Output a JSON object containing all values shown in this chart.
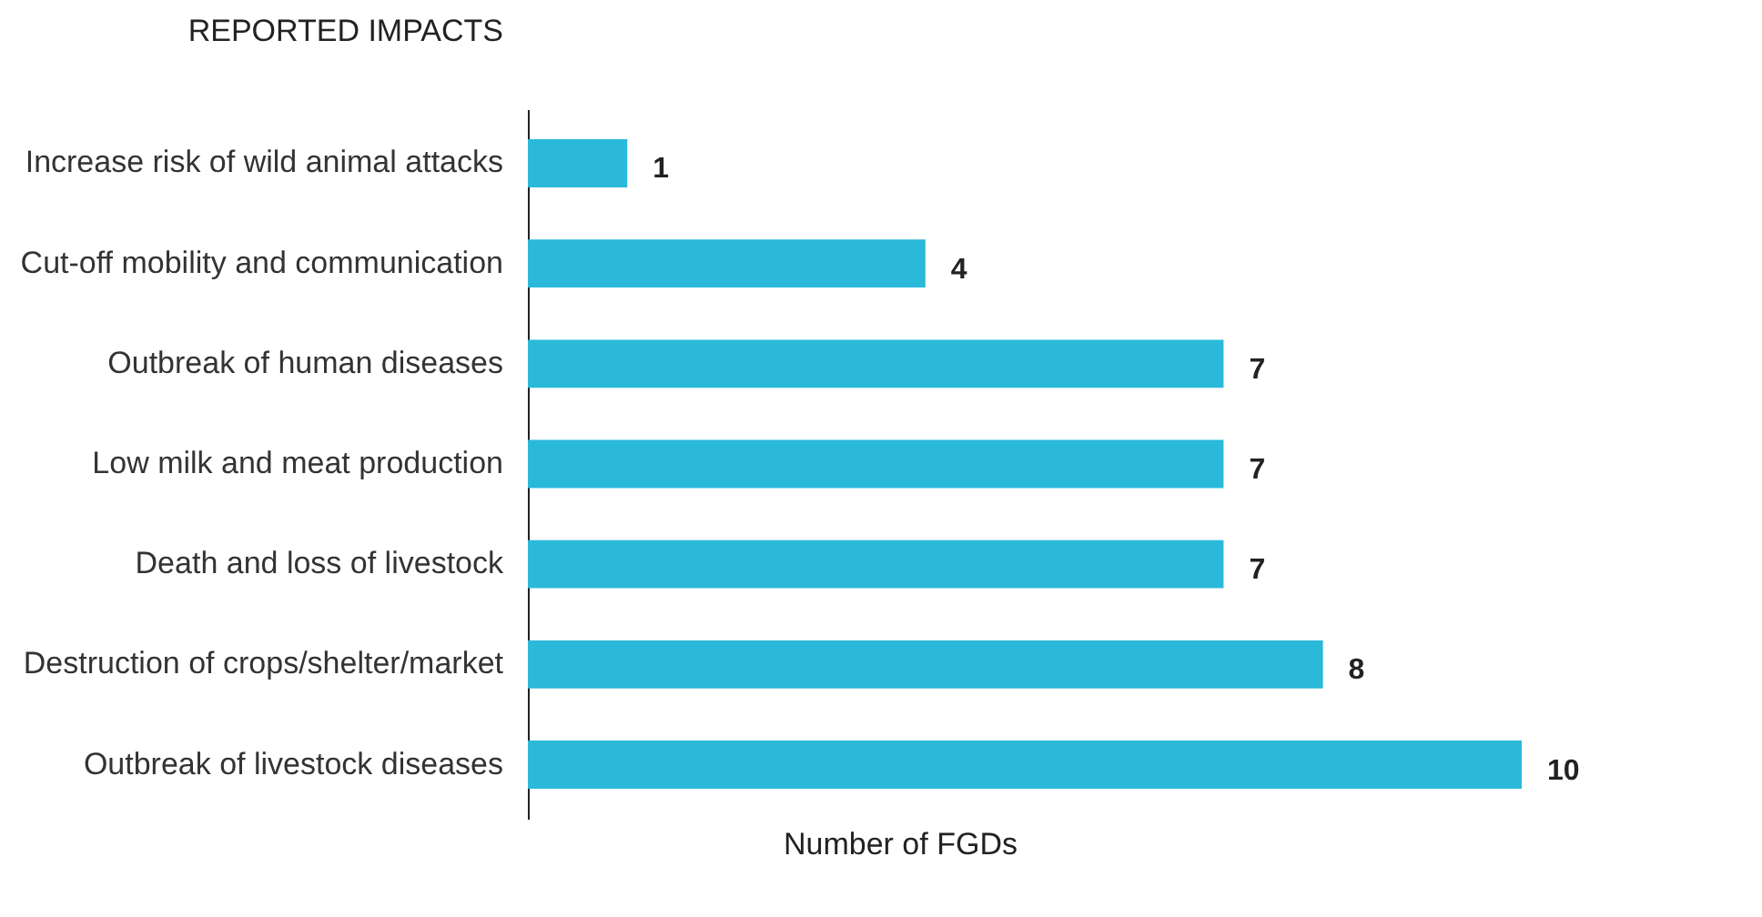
{
  "chart_data": {
    "type": "bar",
    "orientation": "horizontal",
    "ylabel": "REPORTED IMPACTS",
    "xlabel": "Number of FGDs",
    "categories": [
      "Increase risk of wild animal attacks",
      "Cut-off mobility and communication",
      "Outbreak of human diseases",
      "Low milk and meat production",
      "Death and loss of livestock",
      "Destruction of crops/shelter/market",
      "Outbreak of livestock diseases"
    ],
    "values": [
      1,
      4,
      7,
      7,
      7,
      8,
      10
    ],
    "color": "#2bb9d9",
    "data_labels": true,
    "grid": false
  }
}
